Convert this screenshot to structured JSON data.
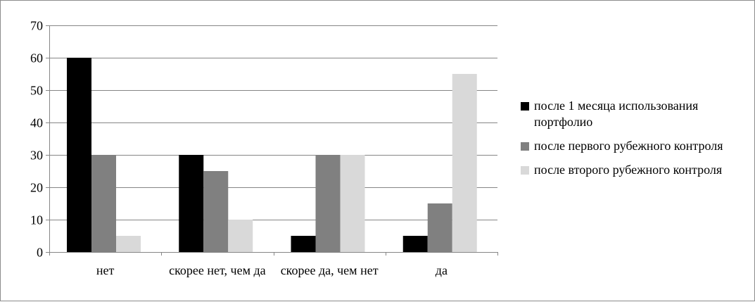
{
  "chart_data": {
    "type": "bar",
    "title": "",
    "xlabel": "",
    "ylabel": "",
    "categories": [
      "нет",
      "скорее нет, чем да",
      "скорее да, чем нет",
      "да"
    ],
    "series": [
      {
        "name": "после 1 месяца использования портфолио",
        "values": [
          60,
          30,
          5,
          5
        ],
        "color": "#000000"
      },
      {
        "name": "после первого рубежного контроля",
        "values": [
          30,
          25,
          30,
          15
        ],
        "color": "#808080"
      },
      {
        "name": "после второго рубежного контроля",
        "values": [
          5,
          10,
          30,
          55
        ],
        "color": "#d9d9d9"
      }
    ],
    "ylim": [
      0,
      70
    ],
    "yticks": [
      0,
      10,
      20,
      30,
      40,
      50,
      60,
      70
    ],
    "grid": true,
    "legend_position": "right"
  },
  "colors": {
    "gridline": "#868686",
    "axis": "#868686",
    "frame": "#8c8c8c"
  }
}
